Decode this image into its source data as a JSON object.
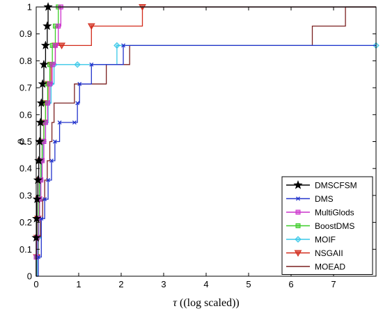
{
  "chart_data": {
    "type": "line",
    "step": true,
    "xlabel_symbol": "τ",
    "xlabel_text": " ((log scaled))",
    "ylabel": "ρ",
    "xlim": [
      0,
      8
    ],
    "ylim": [
      0,
      1
    ],
    "xticks": [
      0,
      1,
      2,
      3,
      4,
      5,
      6,
      7
    ],
    "yticks": [
      0,
      0.1,
      0.2,
      0.3,
      0.4,
      0.5,
      0.6,
      0.7,
      0.8,
      0.9,
      1
    ],
    "grid": false,
    "legend_position": "bottom-right",
    "series": [
      {
        "name": "MOEAD",
        "color": "#7a1f1f",
        "marker": "none",
        "x": [
          0.02,
          0.05,
          0.1,
          0.15,
          0.2,
          0.26,
          0.32,
          0.37,
          0.42,
          0.6,
          0.9,
          1.2,
          1.65,
          2.2,
          6.5,
          7.28
        ],
        "y": [
          0.071,
          0.143,
          0.214,
          0.286,
          0.357,
          0.429,
          0.5,
          0.571,
          0.643,
          0.643,
          0.714,
          0.714,
          0.786,
          0.857,
          0.929,
          1.0
        ]
      },
      {
        "name": "NSGAII",
        "color": "#d22a1a",
        "marker": "triangle-down",
        "x": [
          0.01,
          0.02,
          0.04,
          0.06,
          0.08,
          0.11,
          0.14,
          0.18,
          0.22,
          0.28,
          0.35,
          0.45,
          0.6,
          1.3,
          2.5
        ],
        "y": [
          0.071,
          0.143,
          0.214,
          0.286,
          0.357,
          0.429,
          0.5,
          0.571,
          0.643,
          0.714,
          0.786,
          0.857,
          0.857,
          0.929,
          1.0
        ]
      },
      {
        "name": "MOIF",
        "color": "#38c8e8",
        "marker": "diamond",
        "x": [
          0.02,
          0.04,
          0.06,
          0.08,
          0.1,
          0.13,
          0.17,
          0.22,
          0.28,
          0.35,
          0.42,
          0.97,
          1.9,
          8.0
        ],
        "y": [
          0.071,
          0.143,
          0.214,
          0.286,
          0.357,
          0.429,
          0.5,
          0.571,
          0.643,
          0.714,
          0.786,
          0.786,
          0.857,
          0.857
        ]
      },
      {
        "name": "BoostDMS",
        "color": "#3ccc28",
        "marker": "square",
        "x": [
          0.0,
          0.02,
          0.04,
          0.06,
          0.08,
          0.11,
          0.14,
          0.18,
          0.22,
          0.27,
          0.32,
          0.38,
          0.45,
          0.52
        ],
        "y": [
          0.071,
          0.143,
          0.214,
          0.286,
          0.357,
          0.429,
          0.5,
          0.571,
          0.643,
          0.714,
          0.786,
          0.857,
          0.929,
          1.0
        ]
      },
      {
        "name": "MultiGlods",
        "color": "#cc33cc",
        "marker": "square",
        "x": [
          0.0,
          0.02,
          0.05,
          0.08,
          0.11,
          0.14,
          0.18,
          0.22,
          0.27,
          0.32,
          0.38,
          0.45,
          0.52,
          0.58
        ],
        "y": [
          0.071,
          0.143,
          0.214,
          0.286,
          0.357,
          0.429,
          0.5,
          0.571,
          0.643,
          0.714,
          0.786,
          0.857,
          0.929,
          1.0
        ]
      },
      {
        "name": "DMS",
        "color": "#2233cc",
        "marker": "x",
        "x": [
          0.05,
          0.12,
          0.2,
          0.28,
          0.36,
          0.44,
          0.55,
          0.9,
          0.97,
          1.02,
          1.3,
          2.05
        ],
        "y": [
          0.071,
          0.214,
          0.286,
          0.357,
          0.429,
          0.5,
          0.571,
          0.571,
          0.643,
          0.714,
          0.786,
          0.857
        ]
      },
      {
        "name": "DMSCFSM",
        "color": "#000000",
        "marker": "star",
        "x": [
          0.0,
          0.01,
          0.02,
          0.04,
          0.06,
          0.08,
          0.1,
          0.12,
          0.15,
          0.18,
          0.22,
          0.26,
          0.28
        ],
        "y": [
          0.143,
          0.214,
          0.286,
          0.357,
          0.429,
          0.5,
          0.571,
          0.643,
          0.714,
          0.786,
          0.857,
          0.929,
          1.0
        ]
      }
    ],
    "legend_order": [
      "DMSCFSM",
      "DMS",
      "MultiGlods",
      "BoostDMS",
      "MOIF",
      "NSGAII",
      "MOEAD"
    ]
  }
}
